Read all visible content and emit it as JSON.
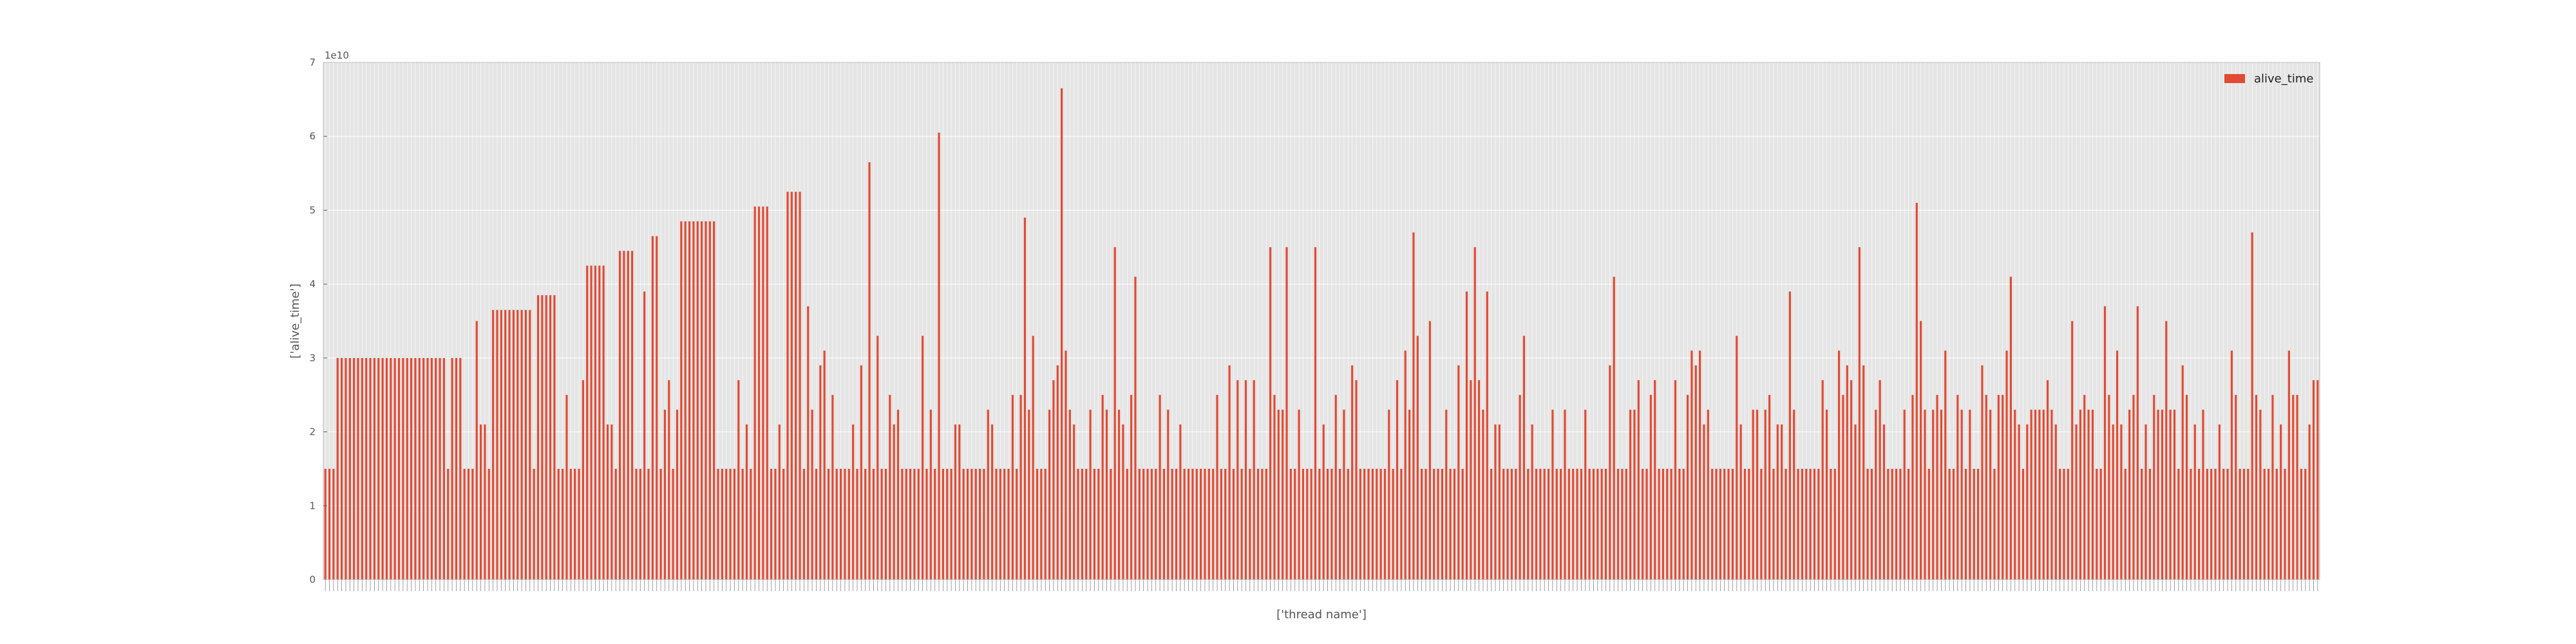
{
  "chart_data": {
    "type": "bar",
    "ylabel": "['alive_time']",
    "xlabel": "['thread name']",
    "y_offset_label": "1e10",
    "ylim": [
      0,
      7
    ],
    "yticks": [
      "0",
      "1",
      "2",
      "3",
      "4",
      "5",
      "6",
      "7"
    ],
    "grid": true,
    "legend_position": "top-right",
    "colors": {
      "bar": "#E24A33",
      "plot_bg": "#E5E5E5",
      "grid": "#FFFFFF",
      "border": "#BCBCBC"
    },
    "categories_count": 470,
    "series": [
      {
        "name": "alive_time",
        "values": [
          1.5,
          1.5,
          1.5,
          3.0,
          3.0,
          3.0,
          3.0,
          3.0,
          3.0,
          3.0,
          3.0,
          3.0,
          3.0,
          3.0,
          3.0,
          3.0,
          3.0,
          3.0,
          3.0,
          3.0,
          3.0,
          3.0,
          3.0,
          3.0,
          3.0,
          3.0,
          3.0,
          3.0,
          3.0,
          3.0,
          1.5,
          3.0,
          3.0,
          3.0,
          1.5,
          1.5,
          1.5,
          3.5,
          2.1,
          2.1,
          1.5,
          3.65,
          3.65,
          3.65,
          3.65,
          3.65,
          3.65,
          3.65,
          3.65,
          3.65,
          3.65,
          1.5,
          3.85,
          3.85,
          3.85,
          3.85,
          3.85,
          1.5,
          1.5,
          2.5,
          1.5,
          1.5,
          1.5,
          2.7,
          4.25,
          4.25,
          4.25,
          4.25,
          4.25,
          2.1,
          2.1,
          1.5,
          4.45,
          4.45,
          4.45,
          4.45,
          1.5,
          1.5,
          3.9,
          1.5,
          4.65,
          4.65,
          1.5,
          2.3,
          2.7,
          1.5,
          2.3,
          4.85,
          4.85,
          4.85,
          4.85,
          4.85,
          4.85,
          4.85,
          4.85,
          4.85,
          1.5,
          1.5,
          1.5,
          1.5,
          1.5,
          2.7,
          1.5,
          2.1,
          1.5,
          5.05,
          5.05,
          5.05,
          5.05,
          1.5,
          1.5,
          2.1,
          1.5,
          5.25,
          5.25,
          5.25,
          5.25,
          1.5,
          3.7,
          2.3,
          1.5,
          2.9,
          3.1,
          1.5,
          2.5,
          1.5,
          1.5,
          1.5,
          1.5,
          2.1,
          1.5,
          2.9,
          1.5,
          5.65,
          1.5,
          3.3,
          1.5,
          1.5,
          2.5,
          2.1,
          2.3,
          1.5,
          1.5,
          1.5,
          1.5,
          1.5,
          3.3,
          1.5,
          2.3,
          1.5,
          6.05,
          1.5,
          1.5,
          1.5,
          2.1,
          2.1,
          1.5,
          1.5,
          1.5,
          1.5,
          1.5,
          1.5,
          2.3,
          2.1,
          1.5,
          1.5,
          1.5,
          1.5,
          2.5,
          1.5,
          2.5,
          4.9,
          2.3,
          3.3,
          1.5,
          1.5,
          1.5,
          2.3,
          2.7,
          2.9,
          6.65,
          3.1,
          2.3,
          2.1,
          1.5,
          1.5,
          1.5,
          2.3,
          1.5,
          1.5,
          2.5,
          2.3,
          1.5,
          4.5,
          2.3,
          2.1,
          1.5,
          2.5,
          4.1,
          1.5,
          1.5,
          1.5,
          1.5,
          1.5,
          2.5,
          1.5,
          2.3,
          1.5,
          1.5,
          2.1,
          1.5,
          1.5,
          1.5,
          1.5,
          1.5,
          1.5,
          1.5,
          1.5,
          2.5,
          1.5,
          1.5,
          2.9,
          1.5,
          2.7,
          1.5,
          2.7,
          1.5,
          2.7,
          1.5,
          1.5,
          1.5,
          4.5,
          2.5,
          2.3,
          2.3,
          4.5,
          1.5,
          1.5,
          2.3,
          1.5,
          1.5,
          1.5,
          4.5,
          1.5,
          2.1,
          1.5,
          1.5,
          2.5,
          1.5,
          2.3,
          1.5,
          2.9,
          2.7,
          1.5,
          1.5,
          1.5,
          1.5,
          1.5,
          1.5,
          1.5,
          2.3,
          1.5,
          2.7,
          1.5,
          3.1,
          2.3,
          4.7,
          3.3,
          1.5,
          1.5,
          3.5,
          1.5,
          1.5,
          1.5,
          2.3,
          1.5,
          1.5,
          2.9,
          1.5,
          3.9,
          2.7,
          4.5,
          2.7,
          2.3,
          3.9,
          1.5,
          2.1,
          2.1,
          1.5,
          1.5,
          1.5,
          1.5,
          2.5,
          3.3,
          1.5,
          2.1,
          1.5,
          1.5,
          1.5,
          1.5,
          2.3,
          1.5,
          1.5,
          2.3,
          1.5,
          1.5,
          1.5,
          1.5,
          2.3,
          1.5,
          1.5,
          1.5,
          1.5,
          1.5,
          2.9,
          4.1,
          1.5,
          1.5,
          1.5,
          2.3,
          2.3,
          2.7,
          1.5,
          1.5,
          2.5,
          2.7,
          1.5,
          1.5,
          1.5,
          1.5,
          2.7,
          1.5,
          1.5,
          2.5,
          3.1,
          2.9,
          3.1,
          2.1,
          2.3,
          1.5,
          1.5,
          1.5,
          1.5,
          1.5,
          1.5,
          3.3,
          2.1,
          1.5,
          1.5,
          2.3,
          2.3,
          1.5,
          2.3,
          2.5,
          1.5,
          2.1,
          2.1,
          1.5,
          3.9,
          2.3,
          1.5,
          1.5,
          1.5,
          1.5,
          1.5,
          1.5,
          2.7,
          2.3,
          1.5,
          1.5,
          3.1,
          2.5,
          2.9,
          2.7,
          2.1,
          4.5,
          2.9,
          1.5,
          1.5,
          2.3,
          2.7,
          2.1,
          1.5,
          1.5,
          1.5,
          1.5,
          2.3,
          1.5,
          2.5,
          5.1,
          3.5,
          2.3,
          1.5,
          2.3,
          2.5,
          2.3,
          3.1,
          1.5,
          1.5,
          2.5,
          2.3,
          1.5,
          2.3,
          1.5,
          1.5,
          2.9,
          2.5,
          2.3,
          1.5,
          2.5,
          2.5,
          3.1,
          4.1,
          2.3,
          2.1,
          1.5,
          2.1,
          2.3,
          2.3,
          2.3,
          2.3,
          2.7,
          2.3,
          2.1,
          1.5,
          1.5,
          1.5,
          3.5,
          2.1,
          2.3,
          2.5,
          2.3,
          2.3,
          1.5,
          1.5,
          3.7,
          2.5,
          2.1,
          3.1,
          2.1,
          1.5,
          2.3,
          2.5,
          3.7,
          1.5,
          2.1,
          1.5,
          2.5,
          2.3,
          2.3,
          3.5,
          2.3,
          2.3,
          1.5,
          2.9,
          2.5,
          1.5,
          2.1,
          1.5,
          2.3,
          1.5,
          1.5,
          1.5,
          2.1,
          1.5,
          1.5,
          3.1,
          2.5,
          1.5,
          1.5,
          1.5,
          4.7,
          2.5,
          2.3,
          1.5,
          1.5,
          2.5,
          1.5,
          2.1,
          1.5,
          3.1,
          2.5,
          2.5,
          1.5,
          1.5,
          2.1,
          2.7,
          2.7
        ]
      }
    ]
  }
}
